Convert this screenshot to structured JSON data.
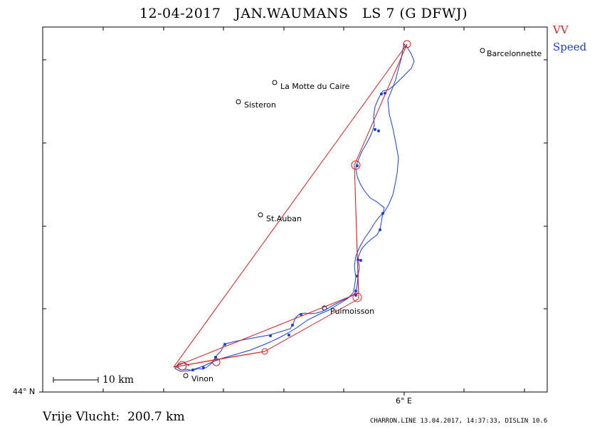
{
  "title": "12-04-2017   JAN.WAUMANS   LS 7 (G DFWJ)",
  "legend": {
    "vv": "VV",
    "speed": "Speed"
  },
  "colors": {
    "vv": "#d42020",
    "speed": "#1a3fd4",
    "frame": "#000000"
  },
  "axes": {
    "lat_label": "44° N",
    "lon_label": "6° E"
  },
  "scale": {
    "label": "10 km"
  },
  "places": [
    {
      "name": "Barcelonnette"
    },
    {
      "name": "La Motte du Caire"
    },
    {
      "name": "Sisteron"
    },
    {
      "name": "St.Auban"
    },
    {
      "name": "Puimoisson"
    },
    {
      "name": "Vinon"
    }
  ],
  "footer": {
    "distance": "Vrije Vlucht:  200.7 km",
    "credit": "CHARRON.LINE 13.04.2017, 14:37:33, DISLIN 10.6"
  }
}
